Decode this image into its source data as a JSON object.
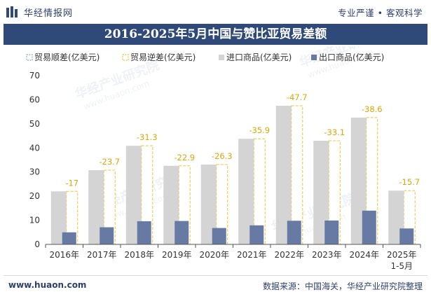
{
  "header": {
    "brand": "华经情报网",
    "tagline": "专业严谨 • 客观科学"
  },
  "footer": {
    "website": "www.huaon.com",
    "source": "数据来源：中国海关，华经产业研究院整理"
  },
  "watermark": {
    "cn": "华经产业研究院",
    "en": "www.huaon.com"
  },
  "colors": {
    "title_bg": "#2f4a79",
    "import": "#d4d4d4",
    "export": "#667aa3",
    "deficit_border": "#f0c43c",
    "deficit_label": "#e0a500",
    "surplus": "#8fa7cf",
    "axis": "#333333"
  },
  "chart_data": {
    "type": "bar",
    "title": "2016-2025年5月中国与赞比亚贸易差额",
    "categories": [
      "2016年",
      "2017年",
      "2018年",
      "2019年",
      "2020年",
      "2021年",
      "2022年",
      "2023年",
      "2024年",
      "2025年\n1-5月"
    ],
    "legend": [
      "贸易顺差(亿美元)",
      "贸易逆差(亿美元)",
      "进口商品(亿美元)",
      "出口商品(亿美元)"
    ],
    "legend_position": "top-left",
    "ylim": [
      0,
      70
    ],
    "yticks": [
      0,
      10,
      20,
      30,
      40,
      50,
      60,
      70
    ],
    "grid": false,
    "series": [
      {
        "name": "贸易逆差(亿美元)",
        "values": [
          -17,
          -23.7,
          -31.3,
          -22.9,
          -26.3,
          -35.9,
          -47.7,
          -33.1,
          -38.6,
          -15.7
        ],
        "labels": [
          "-17",
          "-23.7",
          "-31.3",
          "-22.9",
          "-26.3",
          "-35.9",
          "-47.7",
          "-33.1",
          "-38.6",
          "-15.7"
        ]
      },
      {
        "name": "进口商品(亿美元)",
        "values": [
          22.0,
          30.8,
          40.9,
          32.6,
          33.1,
          43.8,
          57.5,
          43.0,
          52.6,
          22.3
        ]
      },
      {
        "name": "出口商品(亿美元)",
        "values": [
          5.0,
          7.1,
          9.6,
          9.7,
          6.8,
          7.9,
          9.8,
          9.9,
          14.0,
          6.6
        ]
      }
    ]
  }
}
